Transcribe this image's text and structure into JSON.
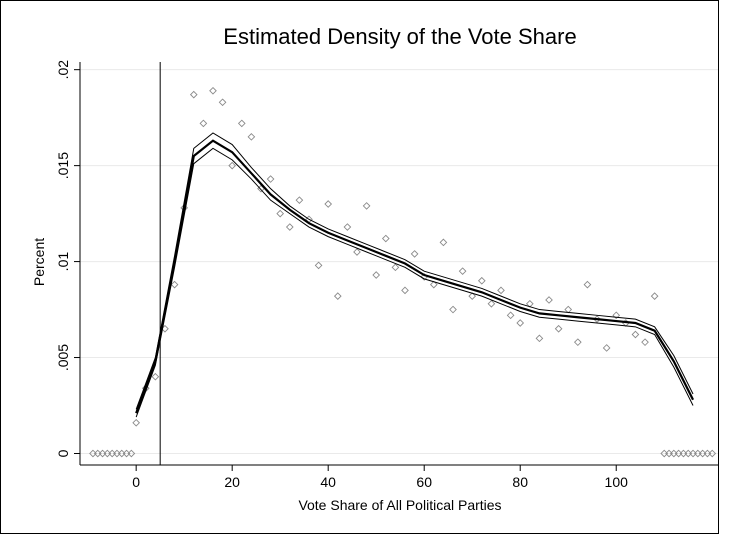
{
  "chart_data": {
    "type": "scatter",
    "title": "Estimated Density of the Vote Share",
    "x_label": "Vote Share of All Political Parties",
    "y_label": "Percent",
    "xlim": [
      -11.7,
      121.2
    ],
    "ylim": [
      -0.0006,
      0.0204
    ],
    "xticks": [
      0,
      20,
      40,
      60,
      80,
      100
    ],
    "yticks": [
      0,
      {
        "value": 0.005,
        "label": ".005"
      },
      {
        "value": 0.01,
        "label": ".01"
      },
      {
        "value": 0.015,
        "label": ".015"
      },
      {
        "value": 0.02,
        "label": ".02"
      }
    ],
    "grid": true,
    "vline": 5,
    "scatter": {
      "color": "#8a8a8a",
      "x": [
        -9,
        -8,
        -7,
        -6,
        -5,
        -4,
        -3,
        -2,
        -1,
        0,
        2,
        4,
        6,
        8,
        10,
        12,
        14,
        16,
        18,
        20,
        22,
        24,
        26,
        28,
        30,
        32,
        34,
        36,
        38,
        40,
        42,
        44,
        46,
        48,
        50,
        52,
        54,
        56,
        58,
        60,
        62,
        64,
        66,
        68,
        70,
        72,
        74,
        76,
        78,
        80,
        82,
        84,
        86,
        88,
        90,
        92,
        94,
        96,
        98,
        100,
        102,
        104,
        106,
        108,
        110,
        111,
        112,
        113,
        114,
        115,
        116,
        117,
        118,
        119,
        120
      ],
      "values": [
        0,
        0,
        0,
        0,
        0,
        0,
        0,
        0,
        0,
        0.0016,
        0.0034,
        0.004,
        0.0065,
        0.0088,
        0.0128,
        0.0187,
        0.0172,
        0.0189,
        0.0183,
        0.015,
        0.0172,
        0.0165,
        0.0138,
        0.0143,
        0.0125,
        0.0118,
        0.0132,
        0.0122,
        0.0098,
        0.013,
        0.0082,
        0.0118,
        0.0105,
        0.0129,
        0.0093,
        0.0112,
        0.0097,
        0.0085,
        0.0104,
        0.0092,
        0.0088,
        0.011,
        0.0075,
        0.0095,
        0.0082,
        0.009,
        0.0078,
        0.0085,
        0.0072,
        0.0068,
        0.0078,
        0.006,
        0.008,
        0.0065,
        0.0075,
        0.0058,
        0.0088,
        0.007,
        0.0055,
        0.0072,
        0.0068,
        0.0062,
        0.0058,
        0.0082,
        0,
        0,
        0,
        0,
        0,
        0,
        0,
        0,
        0,
        0,
        0
      ]
    },
    "curve_x": [
      0,
      4,
      8,
      12,
      16,
      20,
      24,
      28,
      32,
      36,
      40,
      44,
      48,
      52,
      56,
      60,
      64,
      68,
      72,
      76,
      80,
      84,
      88,
      92,
      96,
      100,
      104,
      108,
      112,
      116
    ],
    "series": [
      {
        "color": "#000000",
        "values": [
          0.0023,
          0.005,
          0.0103,
          0.0159,
          0.0167,
          0.0161,
          0.0149,
          0.0138,
          0.0129,
          0.0122,
          0.0117,
          0.0113,
          0.0109,
          0.0105,
          0.0101,
          0.0095,
          0.0092,
          0.0089,
          0.0086,
          0.0082,
          0.0078,
          0.0075,
          0.0074,
          0.0073,
          0.0072,
          0.0071,
          0.007,
          0.0066,
          0.0051,
          0.0031
        ]
      },
      {
        "color": "#000000",
        "values": [
          0.0021,
          0.0048,
          0.01,
          0.0155,
          0.0163,
          0.0157,
          0.0146,
          0.0135,
          0.0127,
          0.012,
          0.0115,
          0.0111,
          0.0107,
          0.0103,
          0.0099,
          0.0093,
          0.009,
          0.0087,
          0.0084,
          0.008,
          0.0076,
          0.0073,
          0.0072,
          0.0071,
          0.007,
          0.0069,
          0.0068,
          0.0064,
          0.0048,
          0.0028
        ]
      },
      {
        "color": "#000000",
        "values": [
          0.0019,
          0.0046,
          0.0097,
          0.0151,
          0.0159,
          0.0153,
          0.0143,
          0.0132,
          0.0125,
          0.0118,
          0.0113,
          0.0109,
          0.0105,
          0.0101,
          0.0097,
          0.0091,
          0.0088,
          0.0085,
          0.0082,
          0.0078,
          0.0074,
          0.0071,
          0.007,
          0.0069,
          0.0068,
          0.0067,
          0.0066,
          0.0062,
          0.0045,
          0.0025
        ]
      }
    ]
  }
}
